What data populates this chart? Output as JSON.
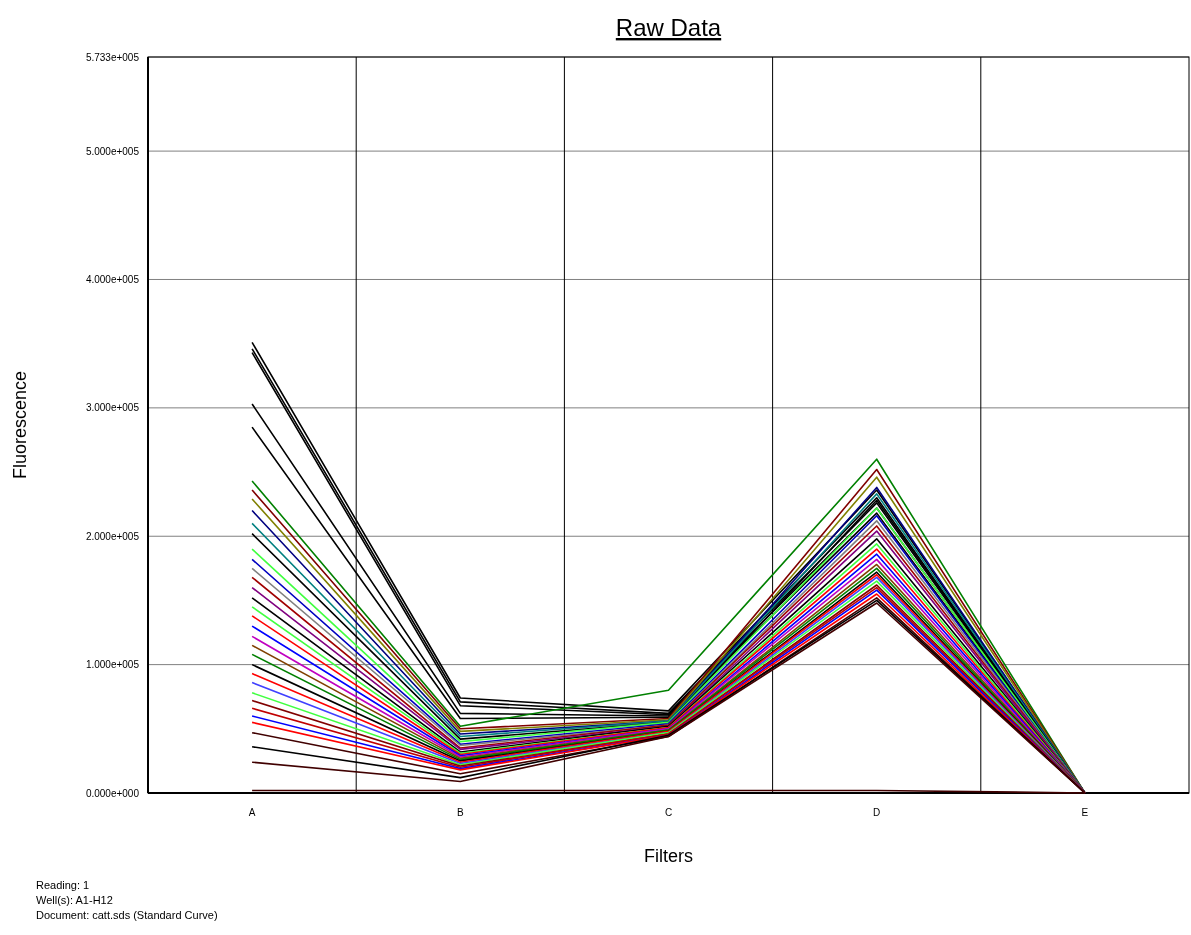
{
  "chart_data": {
    "type": "line",
    "title": "Raw Data",
    "xlabel": "Filters",
    "ylabel": "Fluorescence",
    "categories": [
      "A",
      "B",
      "C",
      "D",
      "E"
    ],
    "ylim": [
      0,
      573300
    ],
    "yticks": [
      {
        "value": 0,
        "label": "0.000e+000"
      },
      {
        "value": 100000,
        "label": "1.000e+005"
      },
      {
        "value": 200000,
        "label": "2.000e+005"
      },
      {
        "value": 300000,
        "label": "3.000e+005"
      },
      {
        "value": 400000,
        "label": "4.000e+005"
      },
      {
        "value": 500000,
        "label": "5.000e+005"
      },
      {
        "value": 573300,
        "label": "5.733e+005"
      }
    ],
    "grid": true,
    "line_style": "solid",
    "marker": "none",
    "annotations": [
      "Reading: 1",
      "Well(s): A1-H12",
      "Document: catt.sds (Standard Curve)"
    ],
    "series": [
      {
        "color": "#000000",
        "values": [
          351000,
          74000,
          64000,
          236000,
          0
        ]
      },
      {
        "color": "#000000",
        "values": [
          346000,
          71000,
          62000,
          230000,
          0
        ]
      },
      {
        "color": "#000000",
        "values": [
          343000,
          68000,
          61000,
          226000,
          0
        ]
      },
      {
        "color": "#000000",
        "values": [
          303000,
          62000,
          60000,
          222000,
          0
        ]
      },
      {
        "color": "#000000",
        "values": [
          285000,
          58000,
          59000,
          218000,
          0
        ]
      },
      {
        "color": "#008000",
        "values": [
          243000,
          52000,
          80000,
          260000,
          0
        ]
      },
      {
        "color": "#800000",
        "values": [
          236000,
          50000,
          58000,
          252000,
          0
        ]
      },
      {
        "color": "#808000",
        "values": [
          229000,
          48000,
          57000,
          246000,
          0
        ]
      },
      {
        "color": "#000080",
        "values": [
          220000,
          46000,
          56000,
          238000,
          0
        ]
      },
      {
        "color": "#008080",
        "values": [
          210000,
          44000,
          56000,
          233000,
          0
        ]
      },
      {
        "color": "#000000",
        "values": [
          202000,
          42000,
          55000,
          228000,
          0
        ]
      },
      {
        "color": "#40ff40",
        "values": [
          190000,
          40000,
          55000,
          222000,
          0
        ]
      },
      {
        "color": "#0000c0",
        "values": [
          182000,
          38000,
          54000,
          216000,
          0
        ]
      },
      {
        "color": "#808080",
        "values": [
          175000,
          37000,
          53000,
          212000,
          0
        ]
      },
      {
        "color": "#a00000",
        "values": [
          168000,
          35000,
          53000,
          208000,
          0
        ]
      },
      {
        "color": "#800080",
        "values": [
          160000,
          34000,
          52000,
          204000,
          0
        ]
      },
      {
        "color": "#000000",
        "values": [
          152000,
          32000,
          52000,
          198000,
          0
        ]
      },
      {
        "color": "#40ff40",
        "values": [
          145000,
          31000,
          51000,
          194000,
          0
        ]
      },
      {
        "color": "#ff0000",
        "values": [
          138000,
          30000,
          51000,
          190000,
          0
        ]
      },
      {
        "color": "#0000ff",
        "values": [
          130000,
          29000,
          50000,
          186000,
          0
        ]
      },
      {
        "color": "#c000c0",
        "values": [
          122000,
          28000,
          50000,
          182000,
          0
        ]
      },
      {
        "color": "#804000",
        "values": [
          115000,
          27000,
          49000,
          178000,
          0
        ]
      },
      {
        "color": "#008000",
        "values": [
          108000,
          26000,
          49000,
          175000,
          0
        ]
      },
      {
        "color": "#000000",
        "values": [
          100000,
          25000,
          48000,
          172000,
          0
        ]
      },
      {
        "color": "#ff0000",
        "values": [
          93000,
          24000,
          48000,
          170000,
          0
        ]
      },
      {
        "color": "#4040ff",
        "values": [
          86000,
          23000,
          47000,
          168000,
          0
        ]
      },
      {
        "color": "#40ff40",
        "values": [
          78000,
          22000,
          47000,
          165000,
          0
        ]
      },
      {
        "color": "#800000",
        "values": [
          72000,
          21000,
          46000,
          162000,
          0
        ]
      },
      {
        "color": "#c00000",
        "values": [
          66000,
          20000,
          46000,
          160000,
          0
        ]
      },
      {
        "color": "#0000ff",
        "values": [
          60000,
          19000,
          45000,
          158000,
          0
        ]
      },
      {
        "color": "#ff0000",
        "values": [
          55000,
          18000,
          45000,
          155000,
          0
        ]
      },
      {
        "color": "#400000",
        "values": [
          47000,
          15000,
          44000,
          152000,
          0
        ]
      },
      {
        "color": "#000000",
        "values": [
          36000,
          12000,
          45000,
          150000,
          0
        ]
      },
      {
        "color": "#400000",
        "values": [
          24000,
          9000,
          44000,
          148000,
          0
        ]
      },
      {
        "color": "#400000",
        "values": [
          2000,
          2000,
          2000,
          2000,
          0
        ]
      }
    ]
  }
}
